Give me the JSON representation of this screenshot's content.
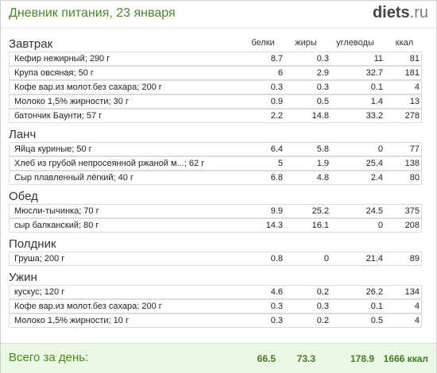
{
  "header": {
    "title": "Дневник питания, 23 января",
    "logo_main": "diets",
    "logo_tld": ".ru"
  },
  "columns": {
    "protein": "белки",
    "fat": "жиры",
    "carbs": "углеводы",
    "kcal": "ккал"
  },
  "meals": [
    {
      "name": "Завтрак",
      "items": [
        {
          "food": "Кефир нежирный; 290 г",
          "protein": "8.7",
          "fat": "0.3",
          "carbs": "11",
          "kcal": "81"
        },
        {
          "food": "Крупа овсяная; 50 г",
          "protein": "6",
          "fat": "2.9",
          "carbs": "32.7",
          "kcal": "181"
        },
        {
          "food": "Кофе вар.из молот.без сахара; 200 г",
          "protein": "0.3",
          "fat": "0.3",
          "carbs": "0.1",
          "kcal": "4"
        },
        {
          "food": "Молоко 1,5% жирности; 30 г",
          "protein": "0.9",
          "fat": "0.5",
          "carbs": "1.4",
          "kcal": "13"
        },
        {
          "food": "батончик Баунти; 57 г",
          "protein": "2.2",
          "fat": "14.8",
          "carbs": "33.2",
          "kcal": "278"
        }
      ]
    },
    {
      "name": "Ланч",
      "items": [
        {
          "food": "Яйца куриные; 50 г",
          "protein": "6.4",
          "fat": "5.8",
          "carbs": "0",
          "kcal": "77"
        },
        {
          "food": "Хлеб из грубой непросеянной ржаной м...; 62 г",
          "protein": "5",
          "fat": "1.9",
          "carbs": "25.4",
          "kcal": "138"
        },
        {
          "food": "Сыр плавленный лёгкий; 40 г",
          "protein": "6.8",
          "fat": "4.8",
          "carbs": "2.4",
          "kcal": "80"
        }
      ]
    },
    {
      "name": "Обед",
      "items": [
        {
          "food": "Мюсли-тычинка; 70 г",
          "protein": "9.9",
          "fat": "25.2",
          "carbs": "24.5",
          "kcal": "375"
        },
        {
          "food": "сыр балканский; 80 г",
          "protein": "14.3",
          "fat": "16.1",
          "carbs": "0",
          "kcal": "208"
        }
      ]
    },
    {
      "name": "Полдник",
      "items": [
        {
          "food": "Груша; 200 г",
          "protein": "0.8",
          "fat": "0",
          "carbs": "21.4",
          "kcal": "89"
        }
      ]
    },
    {
      "name": "Ужин",
      "items": [
        {
          "food": "кускус; 120 г",
          "protein": "4.6",
          "fat": "0.2",
          "carbs": "26.2",
          "kcal": "134"
        },
        {
          "food": "Кофе вар.из молот.без сахара; 200 г",
          "protein": "0.3",
          "fat": "0.3",
          "carbs": "0.1",
          "kcal": "4"
        },
        {
          "food": "Молоко 1,5% жирности; 10 г",
          "protein": "0.3",
          "fat": "0.2",
          "carbs": "0.5",
          "kcal": "4"
        }
      ]
    }
  ],
  "total": {
    "label": "Всего за день:",
    "protein": "66.5",
    "fat": "73.3",
    "carbs": "178.9",
    "kcal": "1666 ккал"
  }
}
